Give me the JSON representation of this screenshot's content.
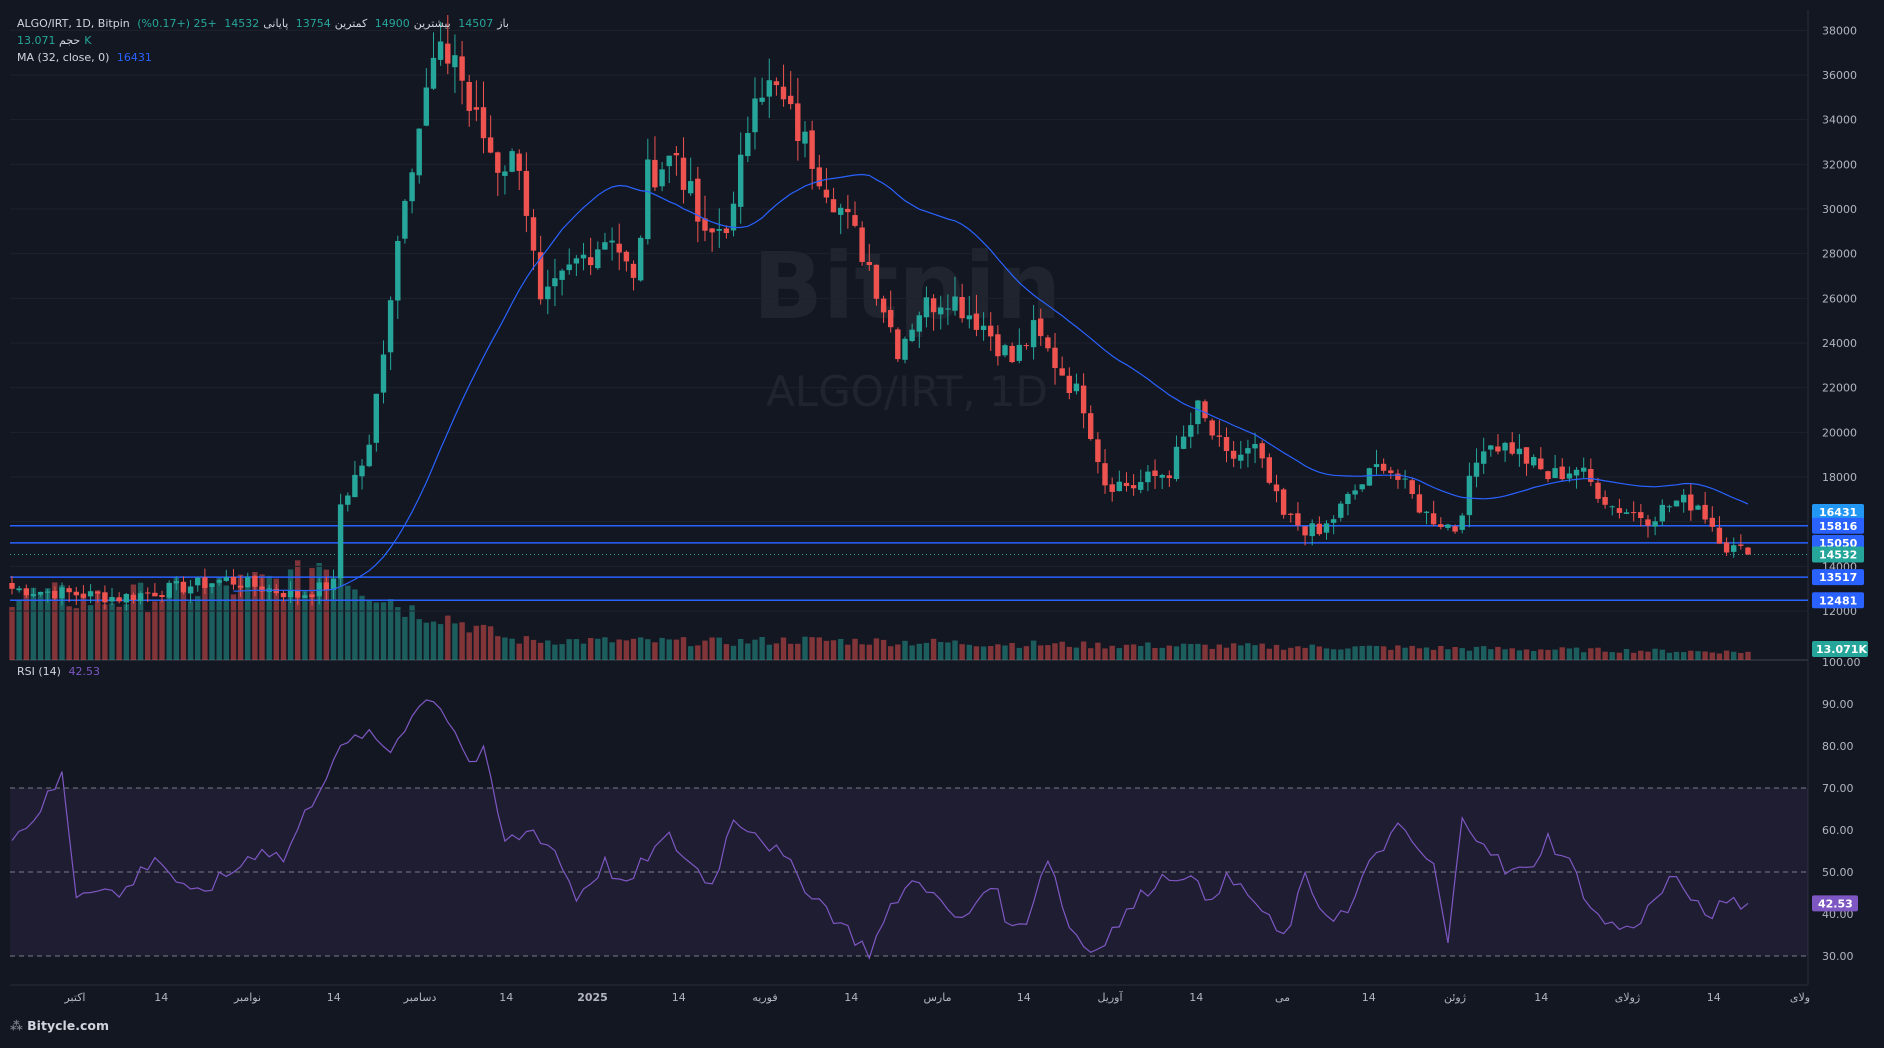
{
  "header": {
    "symbol": "ALGO/IRT, 1D, Bitpin",
    "open_label": "باز",
    "open": "14507",
    "high_label": "بیشترین",
    "high": "14900",
    "low_label": "کمترین",
    "low": "13754",
    "close_label": "پایانی",
    "close": "14532",
    "change": "+25 (+0.17%)",
    "volume_label": "حجم",
    "volume": "13.071K",
    "ma_label": "MA (32, close, 0)",
    "ma_value": "16431",
    "rsi_label": "RSI (14)",
    "rsi_value": "42.53"
  },
  "watermark": {
    "line1": "Bitpin",
    "line2": "ALGO/IRT, 1D"
  },
  "footer": {
    "brand": "Bitycle.com"
  },
  "colors": {
    "up": "#26a69a",
    "down": "#ef5350",
    "ma": "#2962ff",
    "rsi": "#7e57c2",
    "hline": "#2962ff",
    "background": "#131722"
  },
  "chart_data": [
    {
      "type": "candlestick",
      "title": "ALGO/IRT, 1D, Bitpin",
      "price_axis": {
        "ticks": [
          12000,
          14000,
          16000,
          18000,
          20000,
          22000,
          24000,
          26000,
          28000,
          30000,
          32000,
          34000,
          36000,
          38000
        ],
        "range": [
          11500,
          38500
        ]
      },
      "x_axis_labels": [
        "اکتبر",
        "14",
        "نوامبر",
        "14",
        "دسامبر",
        "14",
        "2025",
        "14",
        "فوریه",
        "14",
        "مارس",
        "14",
        "آوریل",
        "14",
        "می",
        "14",
        "ژوئن",
        "14",
        "ژولای",
        "14",
        "ولای"
      ],
      "ma": {
        "name": "MA (32, close, 0)",
        "last": 16431
      },
      "horizontal_levels": [
        15816,
        15050,
        13517,
        12481
      ],
      "price_tags": [
        {
          "value": "16431",
          "kind": "ma"
        },
        {
          "value": "15816",
          "kind": "level"
        },
        {
          "value": "15050",
          "kind": "level"
        },
        {
          "value": "14532",
          "kind": "last"
        },
        {
          "value": "13517",
          "kind": "level"
        },
        {
          "value": "12481",
          "kind": "level"
        }
      ],
      "volume_tag": "13.071K",
      "close_anchors": [
        [
          0,
          13000
        ],
        [
          15,
          12600
        ],
        [
          30,
          13400
        ],
        [
          40,
          12700
        ],
        [
          45,
          13200
        ],
        [
          46,
          16800
        ],
        [
          50,
          19200
        ],
        [
          55,
          31000
        ],
        [
          59,
          36500
        ],
        [
          62,
          37000
        ],
        [
          64,
          34500
        ],
        [
          68,
          32000
        ],
        [
          71,
          32300
        ],
        [
          74,
          25500
        ],
        [
          79,
          27600
        ],
        [
          84,
          29000
        ],
        [
          87,
          26600
        ],
        [
          89,
          31500
        ],
        [
          93,
          32500
        ],
        [
          97,
          28500
        ],
        [
          101,
          29800
        ],
        [
          104,
          35800
        ],
        [
          107,
          35200
        ],
        [
          110,
          33500
        ],
        [
          116,
          30000
        ],
        [
          120,
          27500
        ],
        [
          124,
          23800
        ],
        [
          127,
          25500
        ],
        [
          131,
          26200
        ],
        [
          136,
          24800
        ],
        [
          140,
          23200
        ],
        [
          143,
          24500
        ],
        [
          147,
          22700
        ],
        [
          150,
          21300
        ],
        [
          153,
          17800
        ],
        [
          157,
          17600
        ],
        [
          162,
          18300
        ],
        [
          166,
          21000
        ],
        [
          170,
          18800
        ],
        [
          174,
          19200
        ],
        [
          178,
          16200
        ],
        [
          183,
          15400
        ],
        [
          188,
          17400
        ],
        [
          192,
          18700
        ],
        [
          198,
          16300
        ],
        [
          202,
          15700
        ],
        [
          206,
          19600
        ],
        [
          210,
          19300
        ],
        [
          215,
          18000
        ],
        [
          219,
          18400
        ],
        [
          224,
          16700
        ],
        [
          229,
          16200
        ],
        [
          233,
          16900
        ],
        [
          236,
          16800
        ],
        [
          240,
          14900
        ],
        [
          243,
          14532
        ]
      ],
      "volume_levels": [
        [
          0,
          0.65
        ],
        [
          14,
          0.6
        ],
        [
          40,
          0.8
        ],
        [
          43,
          1.0
        ],
        [
          47,
          0.85
        ],
        [
          52,
          0.65
        ],
        [
          56,
          0.5
        ],
        [
          60,
          0.45
        ],
        [
          70,
          0.2
        ],
        [
          100,
          0.18
        ],
        [
          110,
          0.2
        ],
        [
          150,
          0.15
        ],
        [
          200,
          0.12
        ],
        [
          243,
          0.08
        ]
      ]
    },
    {
      "type": "line",
      "name": "RSI (14)",
      "ylim": [
        25,
        100
      ],
      "y_ticks": [
        30,
        40,
        50,
        60,
        70,
        80,
        90,
        100
      ],
      "band": [
        30,
        70
      ],
      "midline": 50,
      "last": 42.53,
      "anchors": [
        [
          0,
          58
        ],
        [
          3,
          63
        ],
        [
          6,
          70
        ],
        [
          7,
          73
        ],
        [
          9,
          45
        ],
        [
          12,
          47
        ],
        [
          15,
          44
        ],
        [
          20,
          54
        ],
        [
          25,
          44
        ],
        [
          30,
          49
        ],
        [
          35,
          56
        ],
        [
          38,
          53
        ],
        [
          42,
          67
        ],
        [
          45,
          77
        ],
        [
          49,
          83
        ],
        [
          53,
          79
        ],
        [
          56,
          88
        ],
        [
          59,
          92
        ],
        [
          62,
          84
        ],
        [
          64,
          76
        ],
        [
          66,
          78
        ],
        [
          69,
          57
        ],
        [
          73,
          60
        ],
        [
          76,
          55
        ],
        [
          79,
          44
        ],
        [
          83,
          52
        ],
        [
          86,
          46
        ],
        [
          89,
          54
        ],
        [
          92,
          58
        ],
        [
          95,
          52
        ],
        [
          98,
          47
        ],
        [
          101,
          63
        ],
        [
          104,
          60
        ],
        [
          108,
          53
        ],
        [
          112,
          45
        ],
        [
          117,
          36
        ],
        [
          120,
          31
        ],
        [
          124,
          44
        ],
        [
          127,
          49
        ],
        [
          130,
          42
        ],
        [
          133,
          38
        ],
        [
          137,
          48
        ],
        [
          140,
          36
        ],
        [
          142,
          39
        ],
        [
          145,
          54
        ],
        [
          148,
          37
        ],
        [
          151,
          31
        ],
        [
          155,
          38
        ],
        [
          160,
          48
        ],
        [
          164,
          50
        ],
        [
          167,
          44
        ],
        [
          170,
          48
        ],
        [
          173,
          45
        ],
        [
          176,
          38
        ],
        [
          178,
          34
        ],
        [
          181,
          48
        ],
        [
          184,
          40
        ],
        [
          187,
          40
        ],
        [
          191,
          55
        ],
        [
          194,
          60
        ],
        [
          196,
          57
        ],
        [
          199,
          51
        ],
        [
          201,
          33
        ],
        [
          203,
          62
        ],
        [
          206,
          58
        ],
        [
          209,
          50
        ],
        [
          212,
          50
        ],
        [
          215,
          58
        ],
        [
          218,
          52
        ],
        [
          222,
          39
        ],
        [
          226,
          36
        ],
        [
          229,
          41
        ],
        [
          232,
          48
        ],
        [
          235,
          45
        ],
        [
          237,
          38
        ],
        [
          240,
          44
        ],
        [
          243,
          42.53
        ]
      ]
    }
  ]
}
